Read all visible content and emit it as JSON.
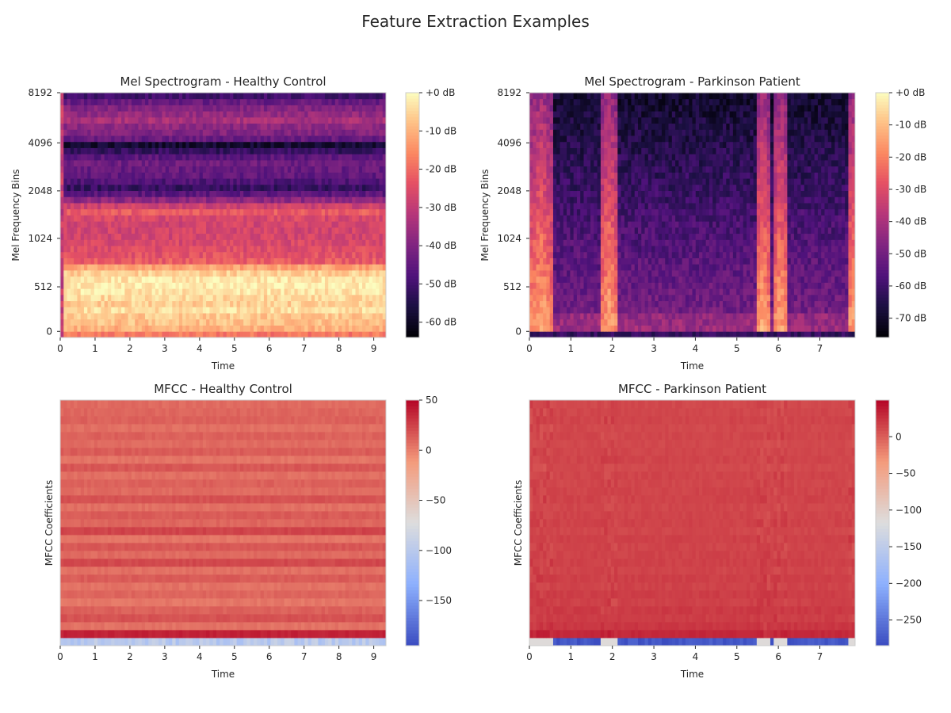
{
  "figure": {
    "title": "Feature Extraction Examples"
  },
  "chart_data": [
    {
      "type": "heatmap",
      "title": "Mel Spectrogram - Healthy Control",
      "xlabel": "Time",
      "ylabel": "Mel Frequency Bins",
      "xlim": [
        0,
        9.35
      ],
      "xticks": [
        "0",
        "1",
        "2",
        "3",
        "4",
        "5",
        "6",
        "7",
        "8",
        "9"
      ],
      "yticks": [
        "0",
        "512",
        "1024",
        "2048",
        "4096",
        "8192"
      ],
      "colormap": "magma",
      "colorbar": {
        "range": [
          -64,
          0
        ],
        "ticks": [
          "+0 dB",
          "-10 dB",
          "-20 dB",
          "-30 dB",
          "-40 dB",
          "-50 dB",
          "-60 dB"
        ]
      },
      "profile": [
        -18,
        -10,
        -8,
        -7,
        -4,
        -6,
        -5,
        -3,
        -2,
        -3,
        -6,
        -12,
        -22,
        -24,
        -25,
        -26,
        -27,
        -27,
        -27,
        -26,
        -22,
        -28,
        -38,
        -46,
        -52,
        -48,
        -45,
        -44,
        -43,
        -46,
        -52,
        -58,
        -44,
        -40,
        -38,
        -34,
        -37,
        -40,
        -44,
        -50
      ]
    },
    {
      "type": "heatmap",
      "title": "Mel Spectrogram - Parkinson Patient",
      "xlabel": "Time",
      "ylabel": "Mel Frequency Bins",
      "xlim": [
        0,
        7.85
      ],
      "xticks": [
        "0",
        "1",
        "2",
        "3",
        "4",
        "5",
        "6",
        "7"
      ],
      "yticks": [
        "0",
        "512",
        "1024",
        "2048",
        "4096",
        "8192"
      ],
      "colormap": "magma",
      "colorbar": {
        "range": [
          -76,
          0
        ],
        "ticks": [
          "+0 dB",
          "-10 dB",
          "-20 dB",
          "-30 dB",
          "-40 dB",
          "-50 dB",
          "-60 dB",
          "-70 dB"
        ]
      },
      "bursts": [
        [
          0,
          0.55
        ],
        [
          1.75,
          2.1
        ],
        [
          5.45,
          5.8
        ],
        [
          5.9,
          6.2
        ],
        [
          7.7,
          7.85
        ]
      ]
    },
    {
      "type": "heatmap",
      "title": "MFCC - Healthy Control",
      "xlabel": "Time",
      "ylabel": "MFCC Coefficients",
      "xlim": [
        0,
        9.35
      ],
      "xticks": [
        "0",
        "1",
        "2",
        "3",
        "4",
        "5",
        "6",
        "7",
        "8",
        "9"
      ],
      "colormap": "coolwarm",
      "colorbar": {
        "range": [
          -195,
          50
        ],
        "ticks": [
          "50",
          "0",
          "−50",
          "−100",
          "−150"
        ]
      },
      "coefficients": [
        -100,
        38,
        5,
        18,
        12,
        3,
        10,
        5,
        14,
        6,
        22,
        8,
        16,
        4,
        24,
        10,
        14,
        6,
        18,
        8,
        12,
        6,
        16,
        4,
        14,
        8,
        12,
        6,
        12,
        10,
        8
      ]
    },
    {
      "type": "heatmap",
      "title": "MFCC - Parkinson Patient",
      "xlabel": "Time",
      "ylabel": "MFCC Coefficients",
      "xlim": [
        0,
        7.85
      ],
      "xticks": [
        "0",
        "1",
        "2",
        "3",
        "4",
        "5",
        "6",
        "7"
      ],
      "colormap": "coolwarm",
      "colorbar": {
        "range": [
          -285,
          50
        ],
        "ticks": [
          "0",
          "−50",
          "−100",
          "−150",
          "−200",
          "−250"
        ]
      },
      "coefficients": [
        -275,
        30,
        22,
        18,
        20,
        16,
        18,
        15,
        17,
        14,
        16,
        15,
        14,
        16,
        13,
        15,
        14,
        13,
        15,
        14,
        13,
        14,
        12,
        14,
        13,
        12,
        13,
        12,
        14,
        13,
        12
      ],
      "bursts": [
        [
          0,
          0.55
        ],
        [
          1.75,
          2.1
        ],
        [
          5.45,
          5.8
        ],
        [
          5.9,
          6.2
        ],
        [
          7.7,
          7.85
        ]
      ]
    }
  ]
}
